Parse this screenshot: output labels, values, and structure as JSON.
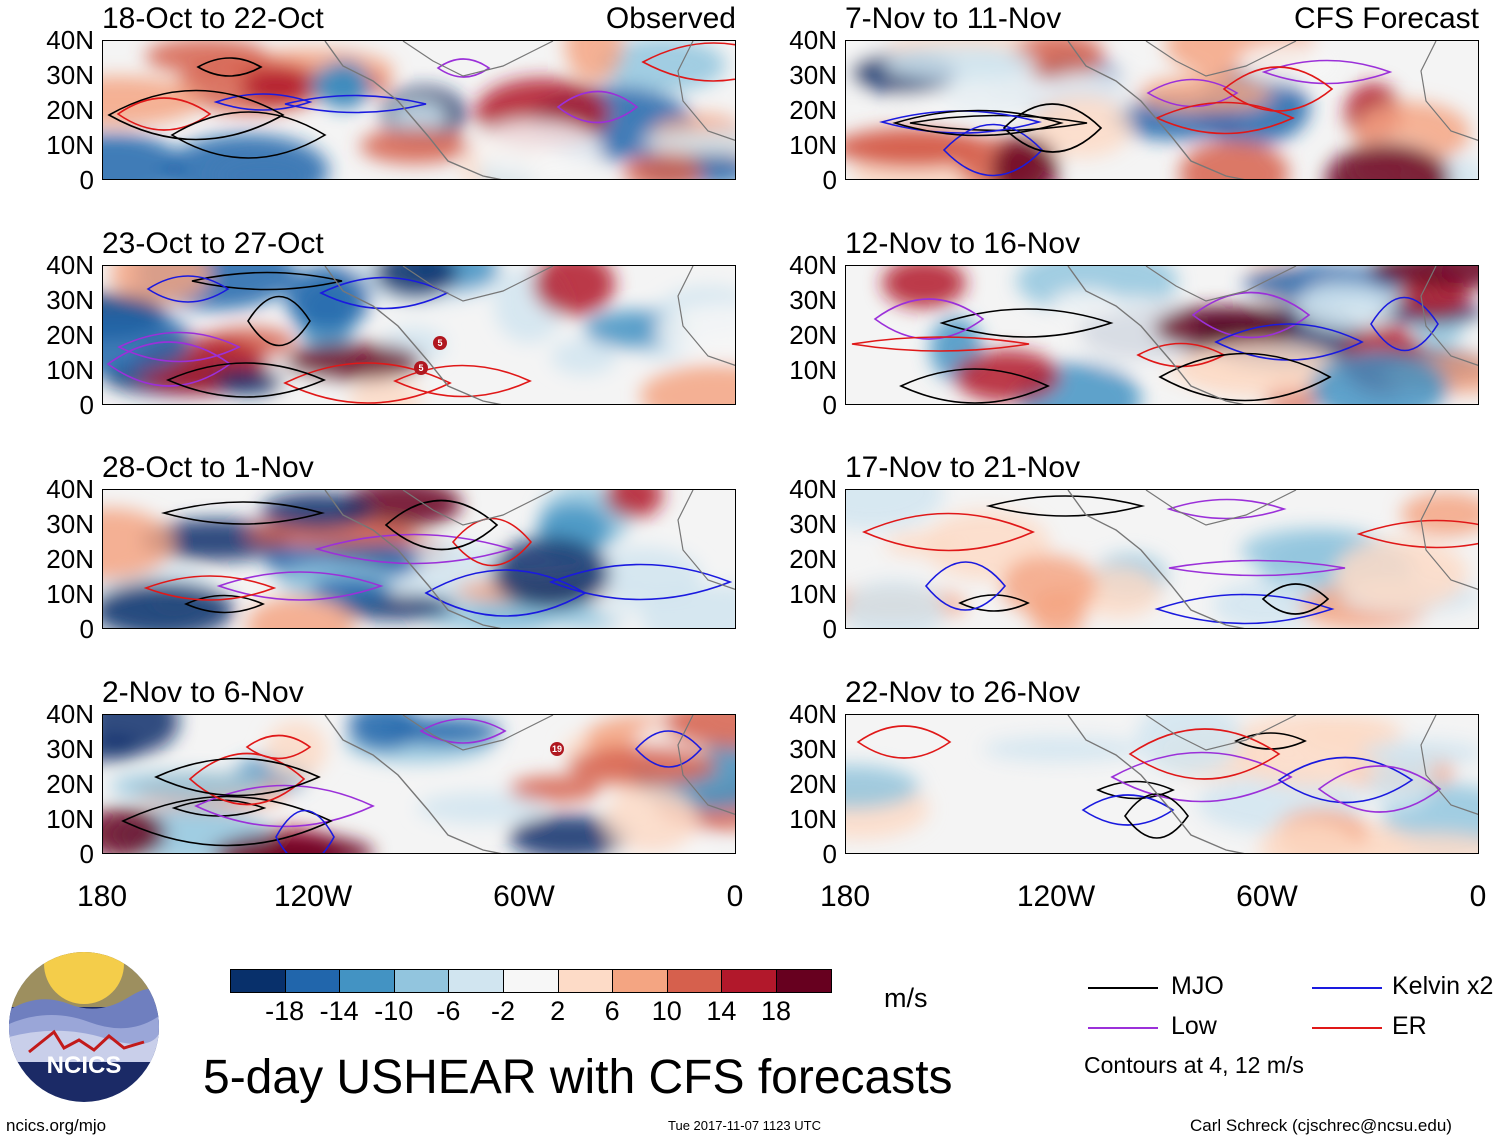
{
  "panels": [
    {
      "title": "18-Oct to 22-Oct",
      "tag": "Observed",
      "seed": 3
    },
    {
      "title": "23-Oct to 27-Oct",
      "tag": "",
      "seed": 7
    },
    {
      "title": "28-Oct to 1-Nov",
      "tag": "",
      "seed": 11
    },
    {
      "title": "2-Nov to 6-Nov",
      "tag": "",
      "seed": 19
    },
    {
      "title": "7-Nov to 11-Nov",
      "tag": "CFS Forecast",
      "seed": 23
    },
    {
      "title": "12-Nov to 16-Nov",
      "tag": "",
      "seed": 29
    },
    {
      "title": "17-Nov to 21-Nov",
      "tag": "",
      "seed": 31
    },
    {
      "title": "22-Nov to 26-Nov",
      "tag": "",
      "seed": 37
    }
  ],
  "y_axis_labels": [
    "40N",
    "30N",
    "20N",
    "10N",
    "0"
  ],
  "x_axis_labels": [
    "180",
    "120W",
    "60W",
    "0"
  ],
  "colorbar": {
    "colors": [
      "#08306b",
      "#2166ac",
      "#4393c3",
      "#92c5de",
      "#d1e5f0",
      "#f7f7f7",
      "#fddbc7",
      "#f4a582",
      "#d6604d",
      "#b2182b",
      "#67001f"
    ],
    "labels": [
      "-18",
      "-14",
      "-10",
      "-6",
      "-2",
      "2",
      "6",
      "10",
      "14",
      "18"
    ],
    "unit": "m/s"
  },
  "legend": {
    "items": [
      {
        "label": "MJO",
        "color": "#000000"
      },
      {
        "label": "Kelvin x2",
        "color": "#1a1adf"
      },
      {
        "label": "Low",
        "color": "#9b30d9"
      },
      {
        "label": "ER",
        "color": "#e01818"
      }
    ],
    "note": "Contours at 4, 12 m/s"
  },
  "title": "5-day USHEAR with CFS forecasts",
  "logo_text": "NCICS",
  "footer": {
    "left": "ncics.org/mjo",
    "center": "Tue 2017-11-07 1123 UTC",
    "right": "Carl Schreck (cjschrec@ncsu.edu)"
  },
  "storm_markers": [
    {
      "panel": 1,
      "label": "5"
    },
    {
      "panel": 1,
      "label": "5"
    },
    {
      "panel": 3,
      "label": "19"
    }
  ]
}
